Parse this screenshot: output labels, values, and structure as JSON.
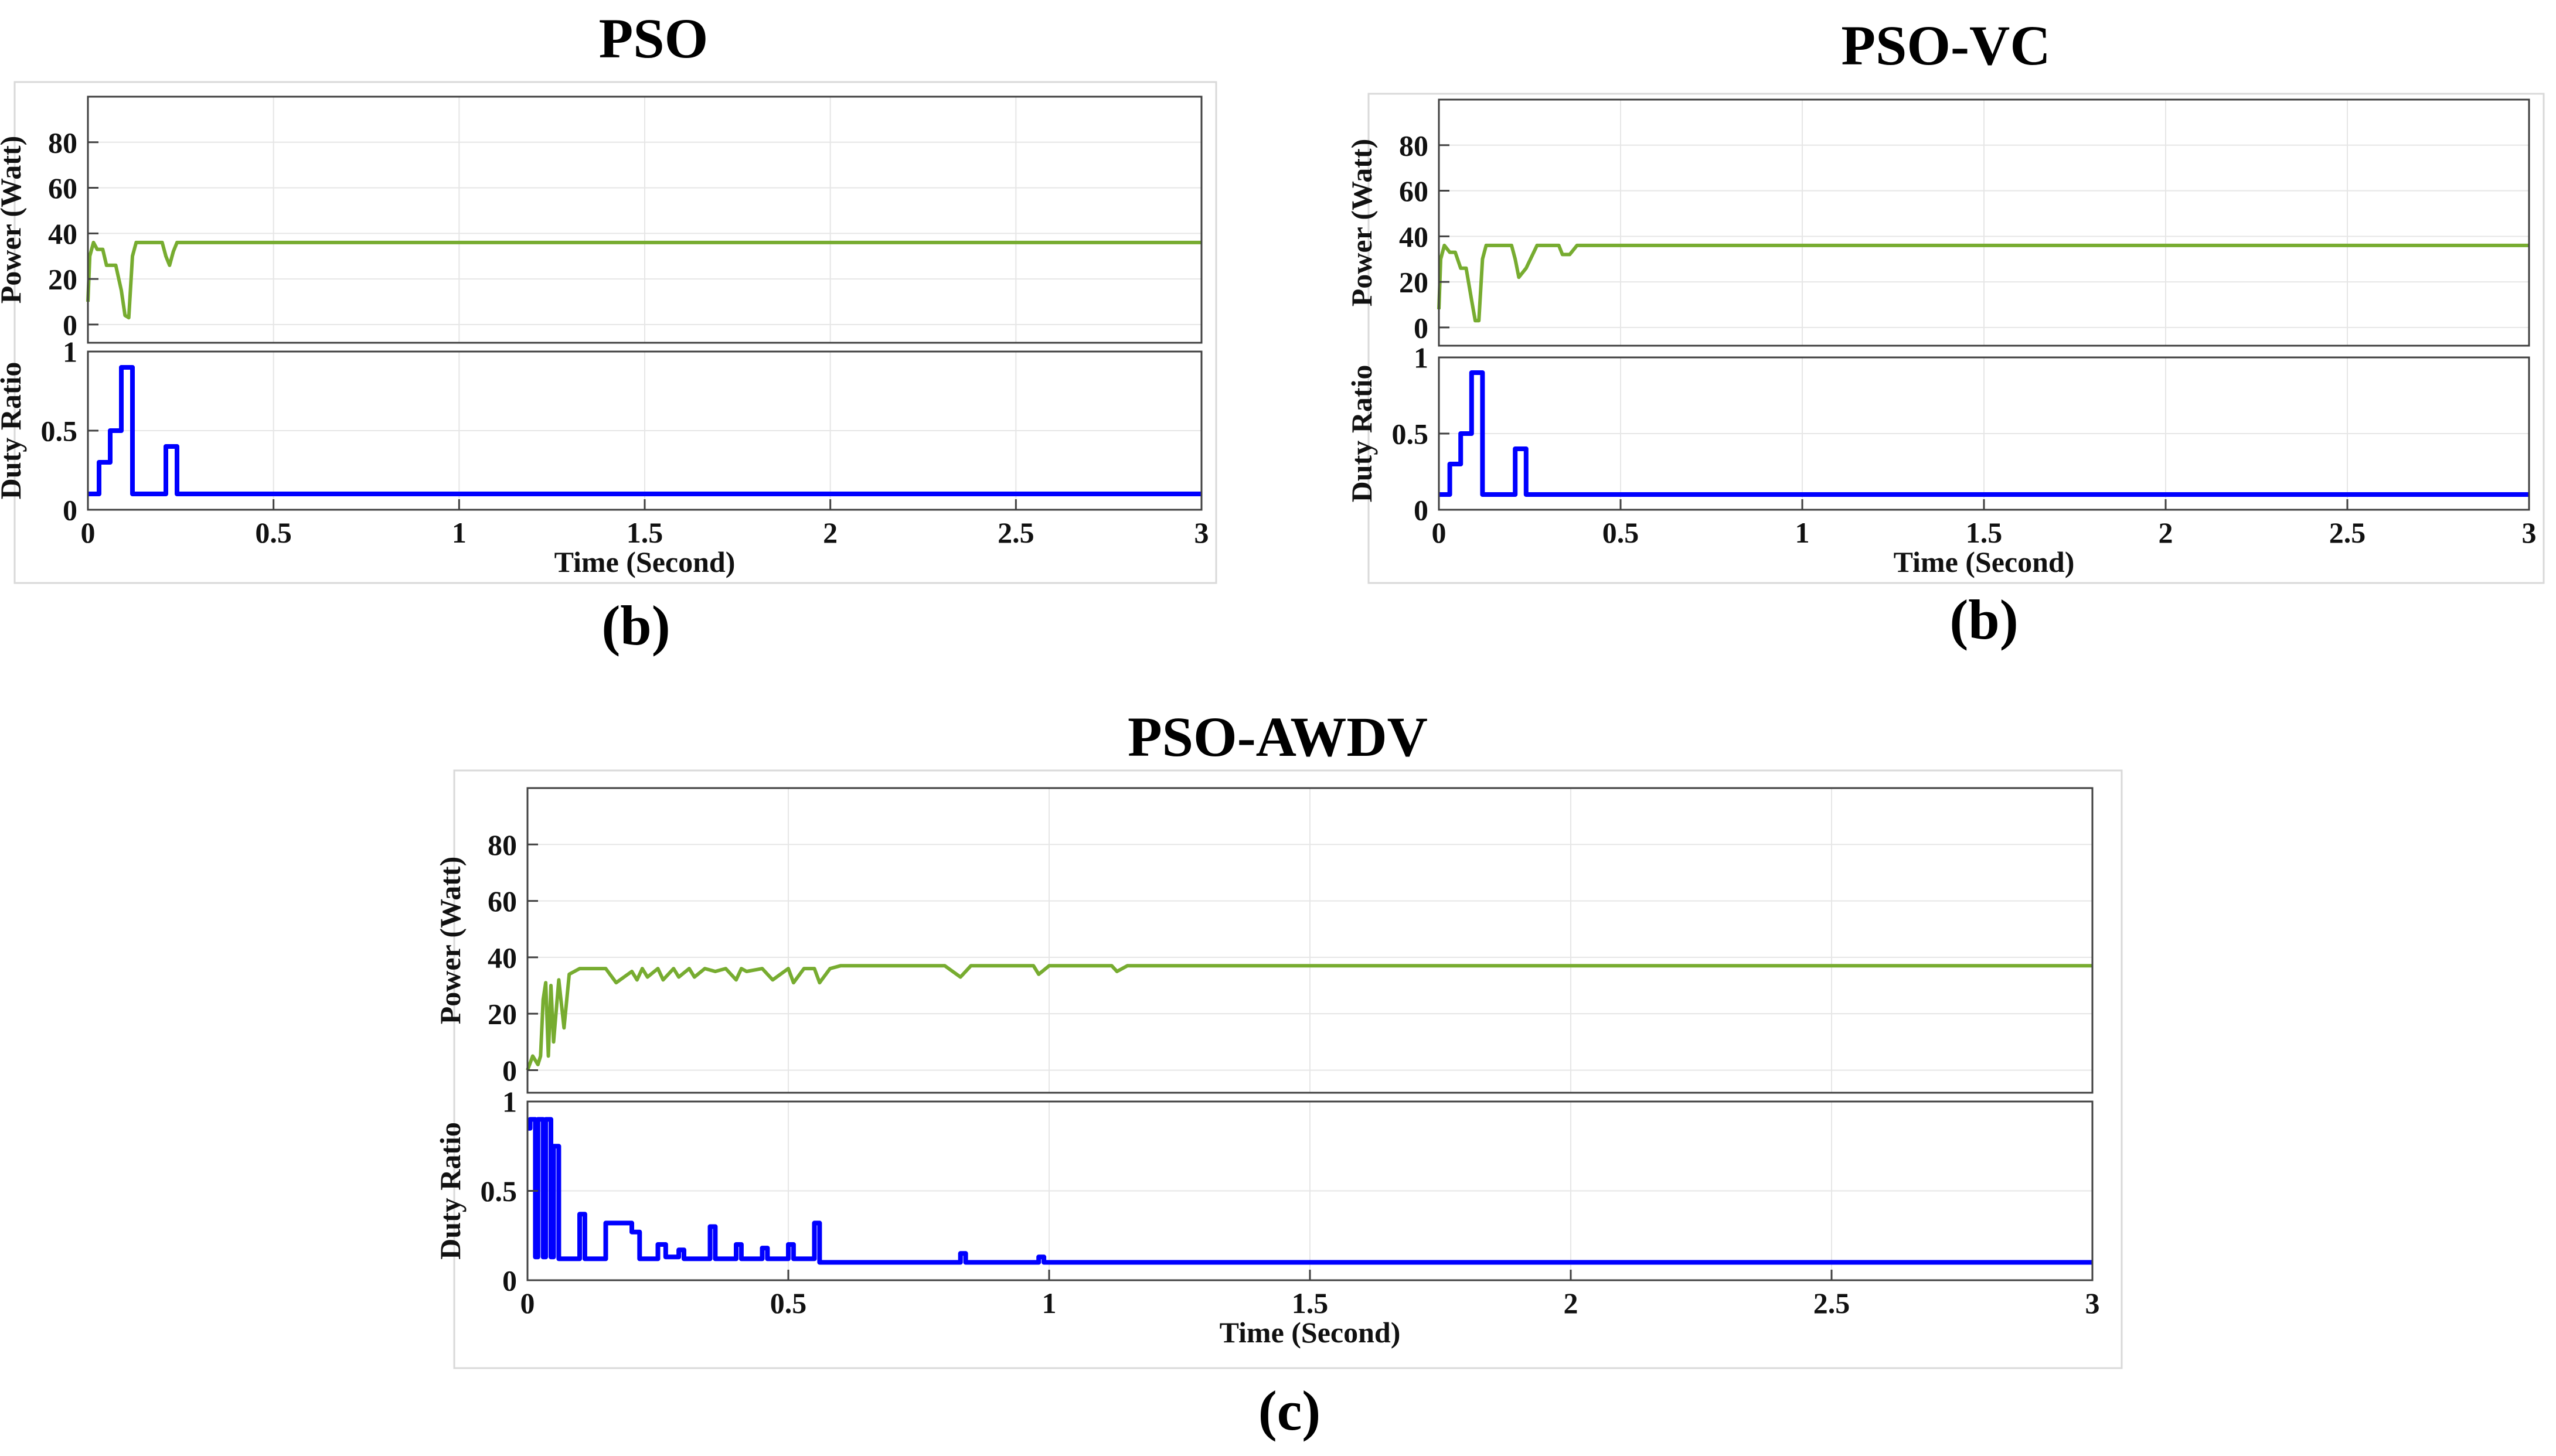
{
  "panels": [
    {
      "title": "PSO",
      "caption": "(b)"
    },
    {
      "title": "PSO-VC",
      "caption": "(b)"
    },
    {
      "title": "PSO-AWDV",
      "caption": "(c)"
    }
  ],
  "colors": {
    "power": "#77ac30",
    "duty": "#0000ff",
    "grid": "#e6e6e6",
    "axis": "#404040",
    "panel_border": "#d9d9d9"
  },
  "chart_data": [
    {
      "type": "line",
      "title": "PSO",
      "caption": "(b)",
      "xlabel": "Time (Second)",
      "subplots": [
        {
          "name": "power",
          "ylabel": "Power (Watt)",
          "ylim": [
            -8,
            100
          ],
          "yticks": [
            0,
            20,
            40,
            60,
            80
          ],
          "xlim": [
            0,
            3
          ],
          "series": [
            {
              "name": "Power",
              "color": "#77ac30",
              "x": [
                0,
                0.005,
                0.015,
                0.025,
                0.04,
                0.05,
                0.065,
                0.075,
                0.09,
                0.1,
                0.11,
                0.12,
                0.13,
                0.14,
                0.165,
                0.18,
                0.2,
                0.21,
                0.22,
                0.23,
                0.24,
                0.25,
                0.35,
                1.0,
                2.0,
                3.0
              ],
              "y": [
                10,
                30,
                36,
                33,
                33,
                26,
                26,
                26,
                15,
                4,
                3,
                30,
                36,
                36,
                36,
                36,
                36,
                30,
                26,
                32,
                36,
                36,
                36,
                36,
                36,
                36
              ]
            }
          ]
        },
        {
          "name": "duty",
          "ylabel": "Duty Ratio",
          "ylim": [
            0,
            1
          ],
          "yticks": [
            0,
            0.5,
            1
          ],
          "yticklabels": [
            "0",
            "0.5",
            "1"
          ],
          "xlim": [
            0,
            3
          ],
          "xticks": [
            0,
            0.5,
            1,
            1.5,
            2,
            2.5,
            3
          ],
          "xticklabels": [
            "0",
            "0.5",
            "1",
            "1.5",
            "2",
            "2.5",
            "3"
          ],
          "series": [
            {
              "name": "Duty Ratio",
              "color": "#0000ff",
              "x": [
                0,
                0.03,
                0.03,
                0.06,
                0.06,
                0.09,
                0.09,
                0.12,
                0.12,
                0.21,
                0.21,
                0.24,
                0.24,
                3.0
              ],
              "y": [
                0.1,
                0.1,
                0.3,
                0.3,
                0.5,
                0.5,
                0.9,
                0.9,
                0.1,
                0.1,
                0.4,
                0.4,
                0.1,
                0.1
              ]
            }
          ]
        }
      ]
    },
    {
      "type": "line",
      "title": "PSO-VC",
      "caption": "(b)",
      "xlabel": "Time (Second)",
      "subplots": [
        {
          "name": "power",
          "ylabel": "Power (Watt)",
          "ylim": [
            -8,
            100
          ],
          "yticks": [
            0,
            20,
            40,
            60,
            80
          ],
          "xlim": [
            0,
            3
          ],
          "series": [
            {
              "name": "Power",
              "color": "#77ac30",
              "x": [
                0,
                0.005,
                0.015,
                0.03,
                0.045,
                0.06,
                0.075,
                0.09,
                0.1,
                0.11,
                0.12,
                0.13,
                0.2,
                0.21,
                0.22,
                0.24,
                0.27,
                0.33,
                0.34,
                0.36,
                0.38,
                0.4,
                1.0,
                2.0,
                3.0
              ],
              "y": [
                8,
                30,
                36,
                33,
                33,
                26,
                26,
                12,
                3,
                3,
                30,
                36,
                36,
                30,
                22,
                26,
                36,
                36,
                32,
                32,
                36,
                36,
                36,
                36,
                36
              ]
            }
          ]
        },
        {
          "name": "duty",
          "ylabel": "Duty Ratio",
          "ylim": [
            0,
            1
          ],
          "yticks": [
            0,
            0.5,
            1
          ],
          "yticklabels": [
            "0",
            "0.5",
            "1"
          ],
          "xlim": [
            0,
            3
          ],
          "xticks": [
            0,
            0.5,
            1,
            1.5,
            2,
            2.5,
            3
          ],
          "xticklabels": [
            "0",
            "0.5",
            "1",
            "1.5",
            "2",
            "2.5",
            "3"
          ],
          "series": [
            {
              "name": "Duty Ratio",
              "color": "#0000ff",
              "x": [
                0,
                0.03,
                0.03,
                0.06,
                0.06,
                0.09,
                0.09,
                0.12,
                0.12,
                0.21,
                0.21,
                0.24,
                0.24,
                3.0
              ],
              "y": [
                0.1,
                0.1,
                0.3,
                0.3,
                0.5,
                0.5,
                0.9,
                0.9,
                0.1,
                0.1,
                0.4,
                0.4,
                0.1,
                0.1
              ]
            }
          ]
        }
      ]
    },
    {
      "type": "line",
      "title": "PSO-AWDV",
      "caption": "(c)",
      "xlabel": "Time (Second)",
      "subplots": [
        {
          "name": "power",
          "ylabel": "Power (Watt)",
          "ylim": [
            -8,
            100
          ],
          "yticks": [
            0,
            20,
            40,
            60,
            80
          ],
          "xlim": [
            0,
            3
          ],
          "series": [
            {
              "name": "Power",
              "color": "#77ac30",
              "x": [
                0,
                0.01,
                0.02,
                0.025,
                0.03,
                0.035,
                0.04,
                0.045,
                0.05,
                0.06,
                0.07,
                0.08,
                0.1,
                0.15,
                0.17,
                0.2,
                0.21,
                0.22,
                0.23,
                0.25,
                0.26,
                0.28,
                0.29,
                0.31,
                0.32,
                0.34,
                0.36,
                0.38,
                0.4,
                0.41,
                0.42,
                0.45,
                0.47,
                0.5,
                0.51,
                0.53,
                0.55,
                0.56,
                0.58,
                0.6,
                0.8,
                0.83,
                0.85,
                0.97,
                0.98,
                1.0,
                1.12,
                1.13,
                1.15,
                3.0
              ],
              "y": [
                0,
                5,
                2,
                5,
                25,
                31,
                5,
                30,
                10,
                32,
                15,
                34,
                36,
                36,
                31,
                35,
                32,
                36,
                33,
                36,
                32,
                36,
                33,
                36,
                33,
                36,
                35,
                36,
                32,
                36,
                35,
                36,
                32,
                36,
                31,
                36,
                36,
                31,
                36,
                37,
                37,
                33,
                37,
                37,
                34,
                37,
                37,
                35,
                37,
                37
              ]
            }
          ]
        },
        {
          "name": "duty",
          "ylabel": "Duty Ratio",
          "ylim": [
            0,
            1
          ],
          "yticks": [
            0,
            0.5,
            1
          ],
          "yticklabels": [
            "0",
            "0.5",
            "1"
          ],
          "xlim": [
            0,
            3
          ],
          "xticks": [
            0,
            0.5,
            1,
            1.5,
            2,
            2.5,
            3
          ],
          "xticklabels": [
            "0",
            "0.5",
            "1",
            "1.5",
            "2",
            "2.5",
            "3"
          ],
          "series": [
            {
              "name": "Duty Ratio",
              "color": "#0000ff",
              "x": [
                0,
                0.005,
                0.005,
                0.015,
                0.015,
                0.02,
                0.02,
                0.03,
                0.03,
                0.035,
                0.035,
                0.045,
                0.045,
                0.05,
                0.05,
                0.06,
                0.06,
                0.1,
                0.1,
                0.11,
                0.11,
                0.15,
                0.15,
                0.2,
                0.2,
                0.215,
                0.215,
                0.25,
                0.25,
                0.265,
                0.265,
                0.29,
                0.29,
                0.3,
                0.3,
                0.35,
                0.35,
                0.36,
                0.36,
                0.4,
                0.4,
                0.41,
                0.41,
                0.45,
                0.45,
                0.46,
                0.46,
                0.5,
                0.5,
                0.51,
                0.51,
                0.55,
                0.55,
                0.56,
                0.56,
                0.83,
                0.83,
                0.84,
                0.84,
                0.98,
                0.98,
                0.99,
                0.99,
                3.0
              ],
              "y": [
                0.85,
                0.85,
                0.9,
                0.9,
                0.13,
                0.13,
                0.9,
                0.9,
                0.13,
                0.13,
                0.9,
                0.9,
                0.13,
                0.13,
                0.75,
                0.75,
                0.12,
                0.12,
                0.37,
                0.37,
                0.12,
                0.12,
                0.32,
                0.32,
                0.27,
                0.27,
                0.12,
                0.12,
                0.2,
                0.2,
                0.13,
                0.13,
                0.17,
                0.17,
                0.12,
                0.12,
                0.3,
                0.3,
                0.12,
                0.12,
                0.2,
                0.2,
                0.12,
                0.12,
                0.18,
                0.18,
                0.12,
                0.12,
                0.2,
                0.2,
                0.12,
                0.12,
                0.32,
                0.32,
                0.1,
                0.1,
                0.15,
                0.15,
                0.1,
                0.1,
                0.13,
                0.13,
                0.1,
                0.1
              ]
            }
          ]
        }
      ]
    }
  ]
}
